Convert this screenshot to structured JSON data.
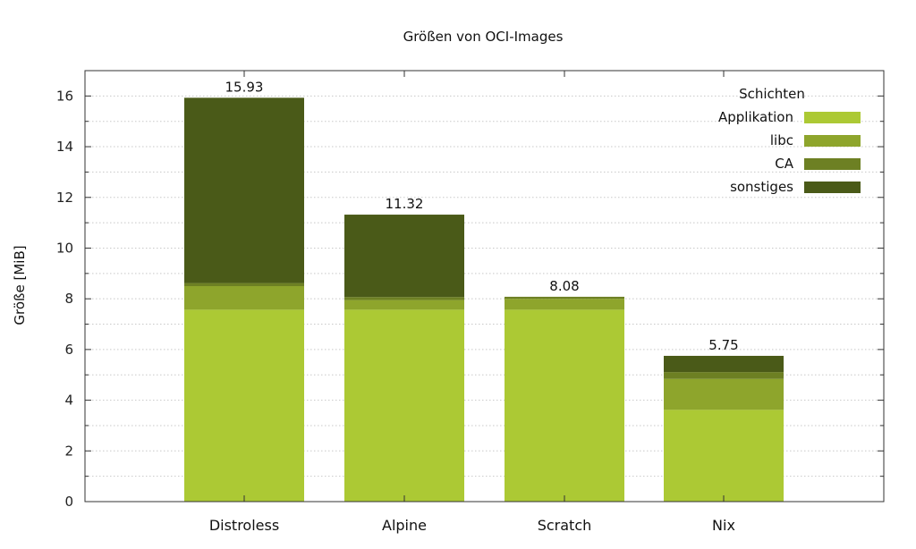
{
  "chart_data": {
    "type": "bar",
    "stacked": true,
    "title": "Größen von OCI-Images",
    "xlabel": "",
    "ylabel": "Größe [MiB]",
    "ylim": [
      0,
      17
    ],
    "yticks": [
      0,
      2,
      4,
      6,
      8,
      10,
      12,
      14,
      16
    ],
    "grid": true,
    "categories": [
      "Distroless",
      "Alpine",
      "Scratch",
      "Nix"
    ],
    "totals": [
      "15.93",
      "11.32",
      "8.08",
      "5.75"
    ],
    "series": [
      {
        "name": "Applikation",
        "color": "#acc934",
        "values": [
          7.57,
          7.57,
          7.57,
          3.62
        ]
      },
      {
        "name": "libc",
        "color": "#8ea52c",
        "values": [
          0.93,
          0.38,
          0.43,
          1.22
        ]
      },
      {
        "name": "CA",
        "color": "#6d8023",
        "values": [
          0.12,
          0.12,
          0.08,
          0.27
        ]
      },
      {
        "name": "sonstiges",
        "color": "#4a5a18",
        "values": [
          7.31,
          3.25,
          0.0,
          0.64
        ]
      }
    ],
    "legend": {
      "title": "Schichten",
      "position": "top-right"
    }
  }
}
